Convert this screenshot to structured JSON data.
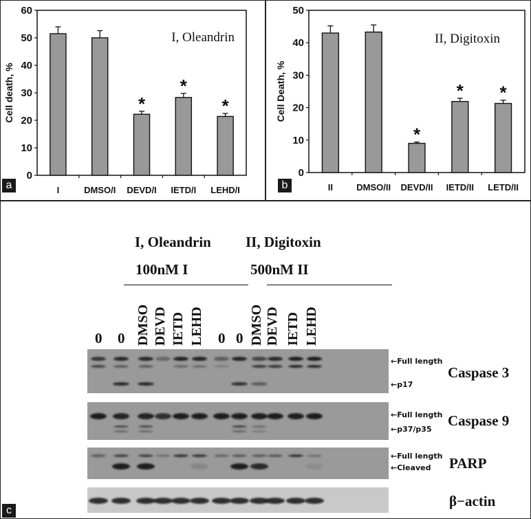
{
  "panels": {
    "a": {
      "label": "a"
    },
    "b": {
      "label": "b"
    },
    "c": {
      "label": "c"
    }
  },
  "chart_data": [
    {
      "type": "bar",
      "panel": "a",
      "title": "I, Oleandrin",
      "xlabel": "",
      "ylabel": "Cell death, %",
      "ylim": [
        0,
        60
      ],
      "yticks": [
        0,
        10,
        20,
        30,
        40,
        50,
        60
      ],
      "grid": false,
      "categories": [
        "I",
        "DMSO/I",
        "DEVD/I",
        "IETD/I",
        "LEHD/I"
      ],
      "values": [
        51.5,
        50.0,
        22.2,
        28.3,
        21.4
      ],
      "errors": [
        2.5,
        2.6,
        1.1,
        1.5,
        1.1
      ],
      "significance": [
        "",
        "",
        "*",
        "*",
        "*"
      ],
      "bar_color": "#999999"
    },
    {
      "type": "bar",
      "panel": "b",
      "title": "II, Digitoxin",
      "xlabel": "",
      "ylabel": "Cell Death, %",
      "ylim": [
        0,
        50
      ],
      "yticks": [
        0,
        10,
        20,
        30,
        40,
        50
      ],
      "grid": false,
      "categories": [
        "II",
        "DMSO/II",
        "DEVD/II",
        "IETD/II",
        "LETD/II"
      ],
      "values": [
        43.0,
        43.3,
        9.0,
        21.9,
        21.3
      ],
      "errors": [
        2.2,
        2.2,
        0.4,
        1.0,
        1.0
      ],
      "significance": [
        "",
        "",
        "*",
        "*",
        "*"
      ],
      "bar_color": "#999999"
    }
  ],
  "western_blot": {
    "groups": [
      {
        "title": "I, Oleandrin",
        "dose": "100nM I"
      },
      {
        "title": "II, Digitoxin",
        "dose": "500nM II"
      }
    ],
    "lanes": [
      "0",
      "0",
      "DMSO",
      "DEVD",
      "IETD",
      "LEHD",
      "0",
      "0",
      "DMSO",
      "DEVD",
      "IETD",
      "LEHD"
    ],
    "blots": [
      {
        "protein": "Caspase 3",
        "markers": [
          "←Full length",
          "←p17"
        ]
      },
      {
        "protein": "Caspase 9",
        "markers": [
          "←Full length",
          "←p37/p35"
        ]
      },
      {
        "protein": "PARP",
        "markers": [
          "←Full length",
          "←Cleaved"
        ]
      },
      {
        "protein": "β−actin",
        "markers": []
      }
    ]
  }
}
